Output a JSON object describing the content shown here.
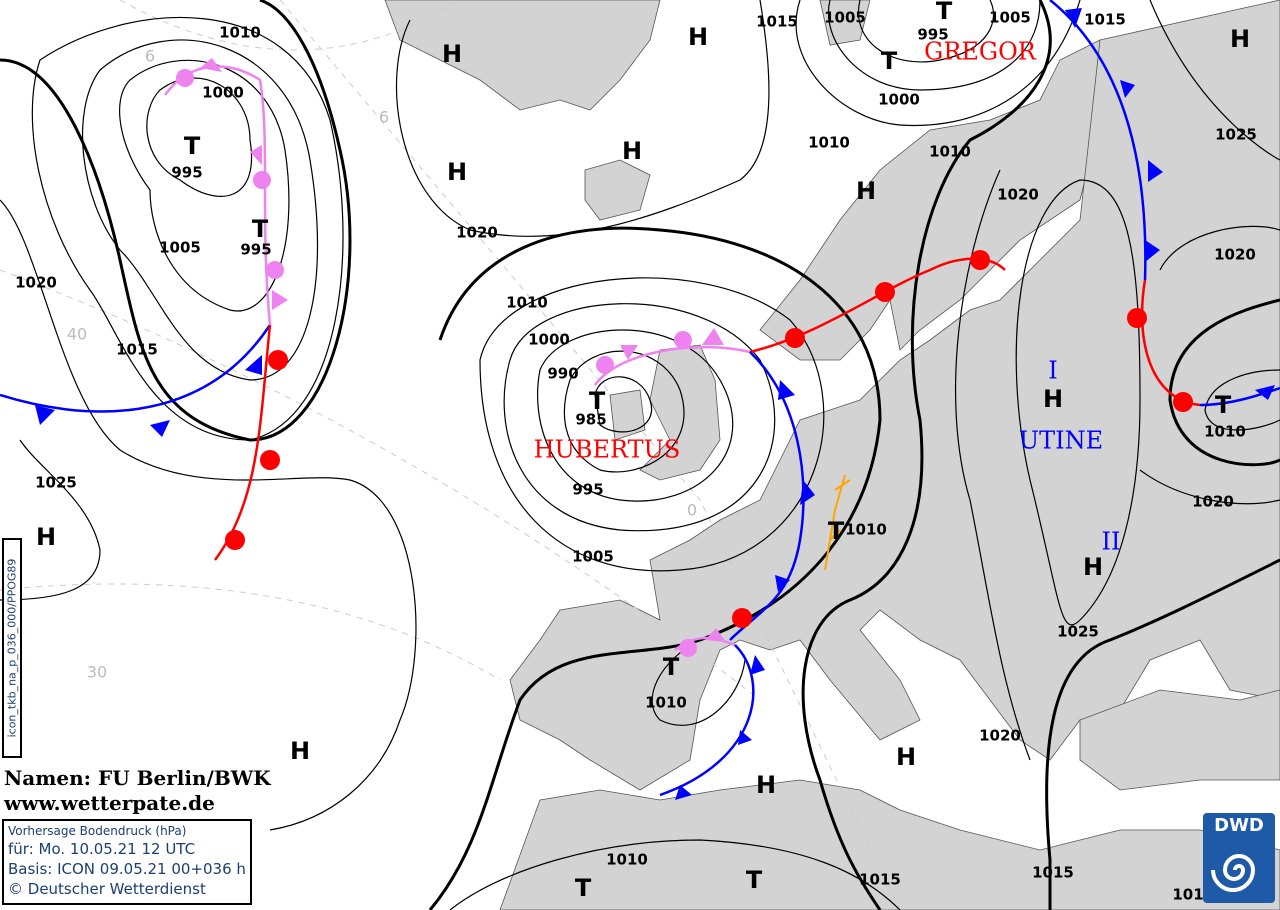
{
  "credit": {
    "names": "Namen: FU Berlin/BWK",
    "url": "www.wetterpate.de"
  },
  "infobox": {
    "title": "Vorhersage Bodendruck (hPa)",
    "valid": "für:  Mo. 10.05.21  12 UTC",
    "basis": "Basis: ICON  09.05.21 00+036 h",
    "copyright": "© Deutscher Wetterdienst"
  },
  "side_code": "icon_tkb_na_p_036_000/PPOG89",
  "logo": {
    "text": "DWD",
    "color": "#1e5aa8"
  },
  "colors": {
    "land": "#d3d3d3",
    "sea": "#ffffff",
    "cold_front": "#0000ff",
    "warm_front": "#ff0000",
    "occlusion": "#ee82ee",
    "trough": "#ffa500",
    "low_name": "#ff0000",
    "high_name": "#0000ff"
  },
  "isobar_labels": [
    "1010",
    "1000",
    "995",
    "1005",
    "995",
    "1020",
    "1015",
    "1025",
    "1020",
    "1010",
    "1000",
    "990",
    "985",
    "995",
    "1005",
    "1015",
    "1005",
    "995",
    "1005",
    "1000",
    "1010",
    "1010",
    "1020",
    "1015",
    "1025",
    "1020",
    "1010",
    "1020",
    "1010",
    "1025",
    "1010",
    "1020",
    "1010",
    "1015",
    "1015",
    "101"
  ],
  "pressure_centers": [
    "H",
    "H",
    "H",
    "H",
    "H",
    "H",
    "H",
    "H",
    "H",
    "H",
    "H",
    "H",
    "T",
    "T",
    "T",
    "T",
    "T",
    "T",
    "T",
    "T",
    "T",
    "T"
  ],
  "system_names": [
    {
      "name": "GREGOR",
      "type": "low"
    },
    {
      "name": "HUBERTUS",
      "type": "low"
    },
    {
      "name": "UTINE",
      "type": "high"
    },
    {
      "name": "I",
      "type": "high"
    },
    {
      "name": "II",
      "type": "high"
    }
  ],
  "graticule_labels": [
    "6",
    "40",
    "30",
    "0",
    "6"
  ]
}
